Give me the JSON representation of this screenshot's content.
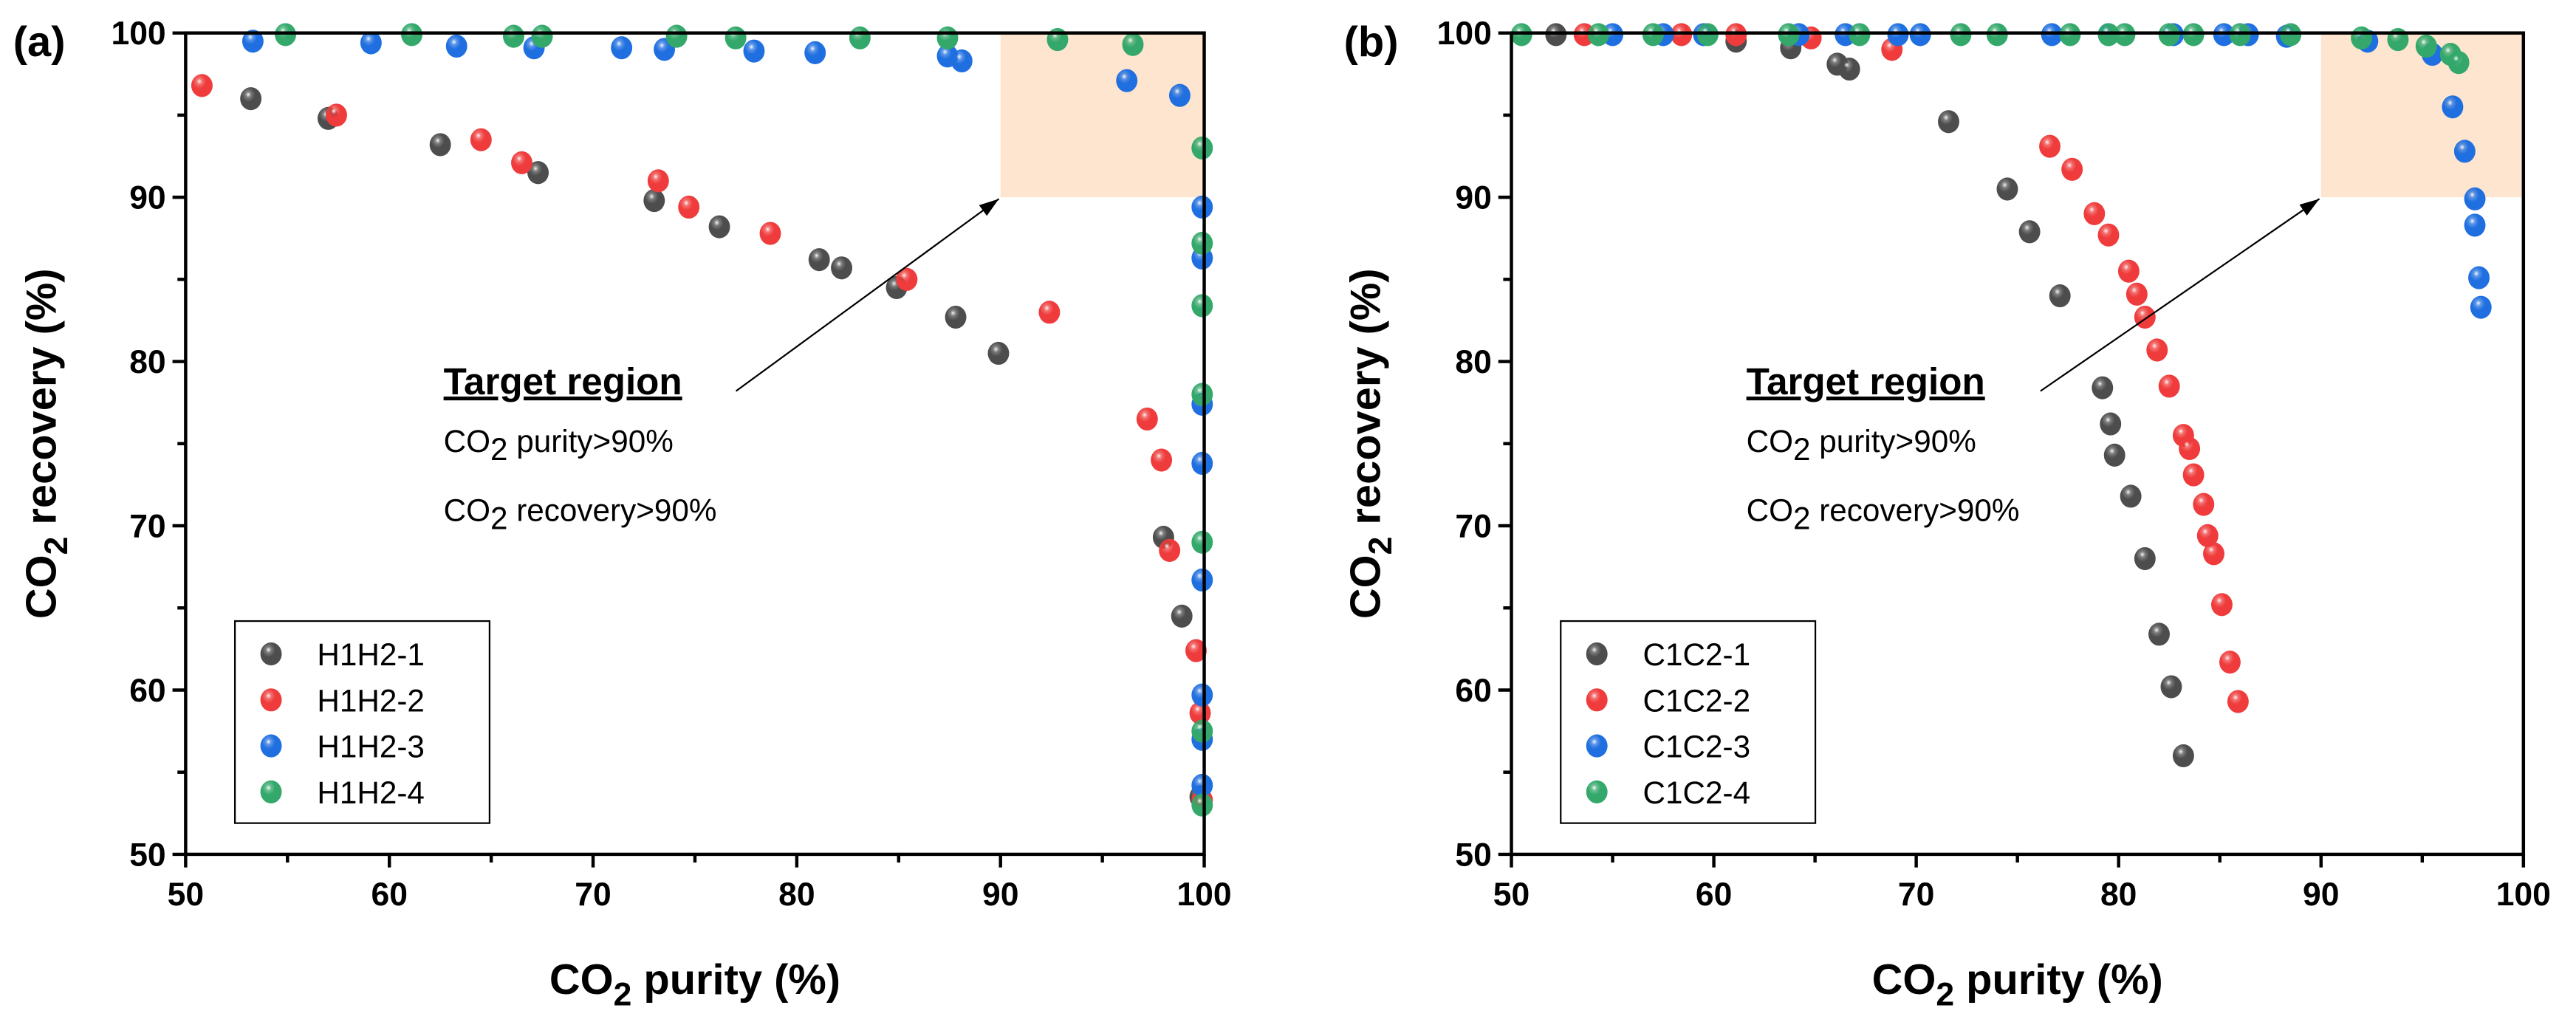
{
  "colors": {
    "H1": "#4d4d4d",
    "H2": "#ef3b3b",
    "H3": "#1f6fe0",
    "H4": "#33a86a",
    "target": "#fde5cf"
  },
  "chart_data": [
    {
      "type": "scatter",
      "panel_label": "(a)",
      "xlabel": "CO2 purity (%)",
      "ylabel": "CO2 recovery (%)",
      "xlim": [
        50,
        100
      ],
      "ylim": [
        50,
        100
      ],
      "xticks": [
        50,
        60,
        70,
        80,
        90,
        100
      ],
      "yticks": [
        50,
        60,
        70,
        80,
        90,
        100
      ],
      "legend_position": "bottom-left",
      "target_region": {
        "x": [
          90,
          100
        ],
        "y": [
          90,
          100
        ]
      },
      "annotation": {
        "title": "Target region",
        "line1_pre": "CO",
        "line1_sub": "2",
        "line1_post": " purity>90%",
        "line2_pre": "CO",
        "line2_sub": "2",
        "line2_post": " recovery>90%"
      },
      "series": [
        {
          "name": "H1H2-1",
          "color": "#4d4d4d",
          "points": [
            [
              53.2,
              96
            ],
            [
              57,
              94.8
            ],
            [
              62.5,
              93.2
            ],
            [
              67.3,
              91.5
            ],
            [
              73,
              89.8
            ],
            [
              76.2,
              88.2
            ],
            [
              81.1,
              86.2
            ],
            [
              82.2,
              85.7
            ],
            [
              84.9,
              84.5
            ],
            [
              87.8,
              82.7
            ],
            [
              89.9,
              80.5
            ],
            [
              98,
              69.3
            ],
            [
              98.9,
              64.5
            ],
            [
              99.8,
              53.5
            ]
          ]
        },
        {
          "name": "H1H2-2",
          "color": "#ef3b3b",
          "points": [
            [
              50.8,
              96.8
            ],
            [
              57.4,
              95
            ],
            [
              64.5,
              93.5
            ],
            [
              66.5,
              92.1
            ],
            [
              73.2,
              91
            ],
            [
              74.7,
              89.4
            ],
            [
              78.7,
              87.8
            ],
            [
              85.4,
              85
            ],
            [
              92.4,
              83
            ],
            [
              97.2,
              76.5
            ],
            [
              97.9,
              74
            ],
            [
              98.3,
              68.5
            ],
            [
              99.6,
              62.4
            ],
            [
              99.8,
              58.6
            ],
            [
              99.9,
              53.3
            ]
          ]
        },
        {
          "name": "H1H2-3",
          "color": "#1f6fe0",
          "points": [
            [
              53.3,
              99.5
            ],
            [
              59.1,
              99.4
            ],
            [
              63.3,
              99.2
            ],
            [
              67.1,
              99.1
            ],
            [
              71.4,
              99.1
            ],
            [
              73.5,
              99
            ],
            [
              77.9,
              98.9
            ],
            [
              80.9,
              98.8
            ],
            [
              87.4,
              98.6
            ],
            [
              88.1,
              98.3
            ],
            [
              96.2,
              97.1
            ],
            [
              98.8,
              96.2
            ],
            [
              99.9,
              89.4
            ],
            [
              99.9,
              86.3
            ],
            [
              99.9,
              77.4
            ],
            [
              99.9,
              73.8
            ],
            [
              99.9,
              66.7
            ],
            [
              99.9,
              59.7
            ],
            [
              99.9,
              57
            ],
            [
              99.9,
              54.2
            ]
          ]
        },
        {
          "name": "H1H2-4",
          "color": "#33a86a",
          "points": [
            [
              54.9,
              99.9
            ],
            [
              61.1,
              99.9
            ],
            [
              66.1,
              99.8
            ],
            [
              67.5,
              99.8
            ],
            [
              74.1,
              99.8
            ],
            [
              77,
              99.7
            ],
            [
              83.1,
              99.7
            ],
            [
              87.4,
              99.7
            ],
            [
              92.8,
              99.6
            ],
            [
              96.5,
              99.3
            ],
            [
              99.9,
              93
            ],
            [
              99.9,
              87.2
            ],
            [
              99.9,
              83.4
            ],
            [
              99.9,
              78
            ],
            [
              99.9,
              69
            ],
            [
              99.9,
              57.5
            ],
            [
              99.9,
              53
            ]
          ]
        }
      ]
    },
    {
      "type": "scatter",
      "panel_label": "(b)",
      "xlabel": "CO2 purity (%)",
      "ylabel": "CO2 recovery (%)",
      "xlim": [
        50,
        100
      ],
      "ylim": [
        50,
        100
      ],
      "xticks": [
        50,
        60,
        70,
        80,
        90,
        100
      ],
      "yticks": [
        50,
        60,
        70,
        80,
        90,
        100
      ],
      "legend_position": "bottom-left",
      "target_region": {
        "x": [
          90,
          100
        ],
        "y": [
          90,
          100
        ]
      },
      "annotation": {
        "title": "Target region",
        "line1_pre": "CO",
        "line1_sub": "2",
        "line1_post": " purity>90%",
        "line2_pre": "CO",
        "line2_sub": "2",
        "line2_post": " recovery>90%"
      },
      "series": [
        {
          "name": "C1C2-1",
          "color": "#4d4d4d",
          "points": [
            [
              52.2,
              99.9
            ],
            [
              61.1,
              99.5
            ],
            [
              63.8,
              99.1
            ],
            [
              66.1,
              98.1
            ],
            [
              66.7,
              97.8
            ],
            [
              71.6,
              94.6
            ],
            [
              74.5,
              90.5
            ],
            [
              75.6,
              87.9
            ],
            [
              77.1,
              84
            ],
            [
              79.2,
              78.4
            ],
            [
              79.6,
              76.2
            ],
            [
              79.8,
              74.3
            ],
            [
              80.6,
              71.8
            ],
            [
              81.3,
              68
            ],
            [
              82,
              63.4
            ],
            [
              82.6,
              60.2
            ],
            [
              83.2,
              56
            ]
          ]
        },
        {
          "name": "C1C2-2",
          "color": "#ef3b3b",
          "points": [
            [
              53.6,
              99.9
            ],
            [
              58.4,
              99.9
            ],
            [
              61.1,
              99.9
            ],
            [
              64.8,
              99.7
            ],
            [
              68.8,
              99
            ],
            [
              76.6,
              93.1
            ],
            [
              77.7,
              91.7
            ],
            [
              78.8,
              89
            ],
            [
              79.5,
              87.7
            ],
            [
              80.5,
              85.5
            ],
            [
              80.9,
              84.1
            ],
            [
              81.3,
              82.7
            ],
            [
              81.9,
              80.7
            ],
            [
              82.5,
              78.5
            ],
            [
              83.2,
              75.5
            ],
            [
              83.5,
              74.7
            ],
            [
              83.7,
              73.1
            ],
            [
              84.2,
              71.3
            ],
            [
              84.4,
              69.4
            ],
            [
              84.7,
              68.3
            ],
            [
              85.1,
              65.2
            ],
            [
              85.5,
              61.7
            ],
            [
              85.9,
              59.3
            ]
          ]
        },
        {
          "name": "C1C2-3",
          "color": "#1f6fe0",
          "points": [
            [
              55,
              99.9
            ],
            [
              57.5,
              99.9
            ],
            [
              59.5,
              99.9
            ],
            [
              64.2,
              99.9
            ],
            [
              66.5,
              99.9
            ],
            [
              69.1,
              99.9
            ],
            [
              70.2,
              99.9
            ],
            [
              76.7,
              99.9
            ],
            [
              79.5,
              99.9
            ],
            [
              82.7,
              99.9
            ],
            [
              85.2,
              99.9
            ],
            [
              86.4,
              99.9
            ],
            [
              88.3,
              99.8
            ],
            [
              92.3,
              99.5
            ],
            [
              95.5,
              98.7
            ],
            [
              96.5,
              95.5
            ],
            [
              97.1,
              92.8
            ],
            [
              97.6,
              89.9
            ],
            [
              97.6,
              88.3
            ],
            [
              97.8,
              85.1
            ],
            [
              97.9,
              83.3
            ]
          ]
        },
        {
          "name": "C1C2-4",
          "color": "#33a86a",
          "points": [
            [
              50.5,
              99.9
            ],
            [
              54.3,
              99.9
            ],
            [
              57,
              99.9
            ],
            [
              59.7,
              99.9
            ],
            [
              63.7,
              99.9
            ],
            [
              67.2,
              99.9
            ],
            [
              72.2,
              99.9
            ],
            [
              74,
              99.9
            ],
            [
              77.6,
              99.9
            ],
            [
              79.5,
              99.9
            ],
            [
              80.3,
              99.9
            ],
            [
              82.5,
              99.9
            ],
            [
              83.7,
              99.9
            ],
            [
              86,
              99.9
            ],
            [
              88.5,
              99.9
            ],
            [
              92,
              99.7
            ],
            [
              93.8,
              99.6
            ],
            [
              95.2,
              99.2
            ],
            [
              96.4,
              98.7
            ],
            [
              96.8,
              98.2
            ]
          ]
        }
      ]
    }
  ]
}
